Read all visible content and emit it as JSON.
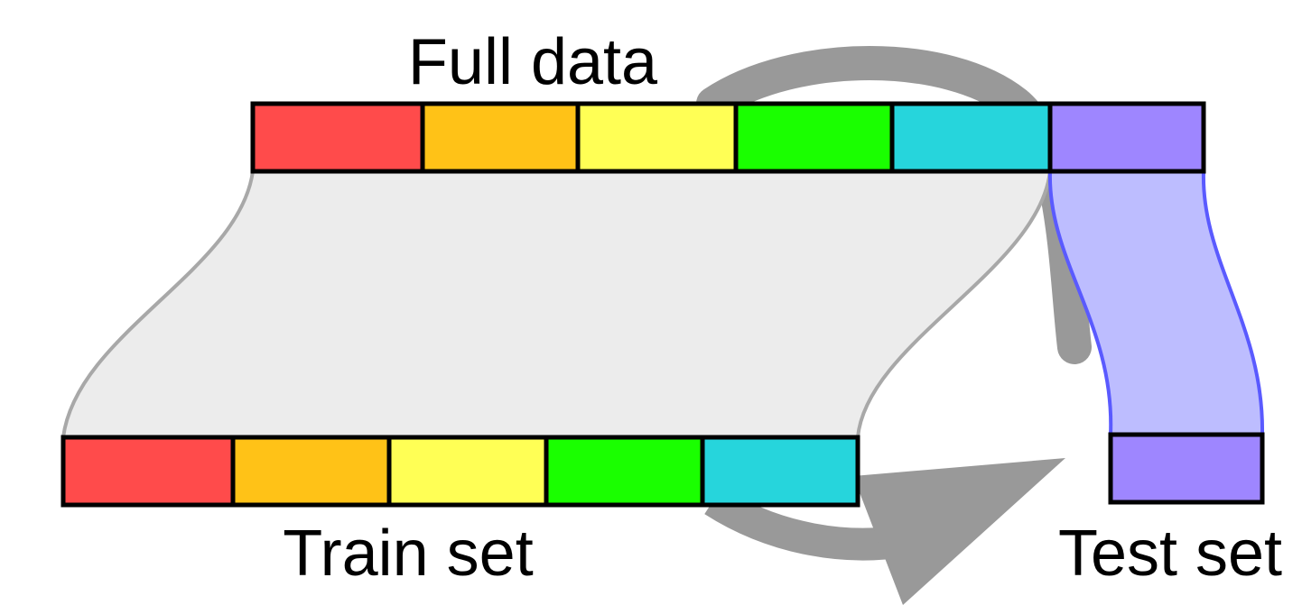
{
  "labels": {
    "full": "Full data",
    "train": "Train set",
    "test": "Test set"
  },
  "colors": {
    "segments": [
      "#ff4b4b",
      "#ffc217",
      "#ffff55",
      "#1aff00",
      "#26d5dc",
      "#9e86ff"
    ],
    "flow_fill": "#ececec",
    "flow_stroke": "#a8a8a8",
    "test_flow_fill": "#bdbdff",
    "test_flow_stroke": "#5a5aff",
    "arrow": "#999999",
    "border": "#000000"
  },
  "full_data": {
    "segments": [
      "red",
      "orange",
      "yellow",
      "green",
      "cyan",
      "purple"
    ]
  },
  "train_set": {
    "segments": [
      "red",
      "orange",
      "yellow",
      "green",
      "cyan"
    ]
  },
  "test_set": {
    "segments": [
      "purple"
    ]
  }
}
